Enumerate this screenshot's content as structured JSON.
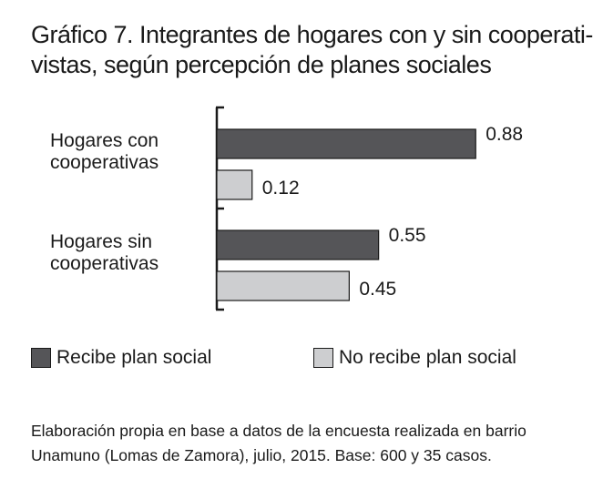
{
  "title": {
    "line1": "Gráfico 7. Integrantes de hogares con y sin cooperati-",
    "line2": "vistas, según percepción de planes sociales"
  },
  "chart_data": {
    "type": "bar",
    "orientation": "horizontal",
    "categories": [
      [
        "Hogares con",
        "cooperativas"
      ],
      [
        "Hogares sin",
        "cooperativas"
      ]
    ],
    "series": [
      {
        "name": "Recibe plan social",
        "values": [
          0.88,
          0.55
        ],
        "labels": [
          "0.88",
          "0.55"
        ],
        "color": "#555558"
      },
      {
        "name": "No recibe plan social",
        "values": [
          0.12,
          0.45
        ],
        "labels": [
          "0.12",
          "0.45"
        ],
        "color": "#cdced0"
      }
    ],
    "xlim": [
      0,
      1
    ],
    "grid": false,
    "legend_position": "bottom"
  },
  "colors": {
    "bar_outline": "#1a1a1a",
    "axis": "#1a1a1a"
  },
  "source": {
    "line1": "Elaboración propia en base a datos de la encuesta realizada en barrio",
    "line2": "Unamuno (Lomas de Zamora), julio, 2015. Base: 600 y 35 casos."
  }
}
